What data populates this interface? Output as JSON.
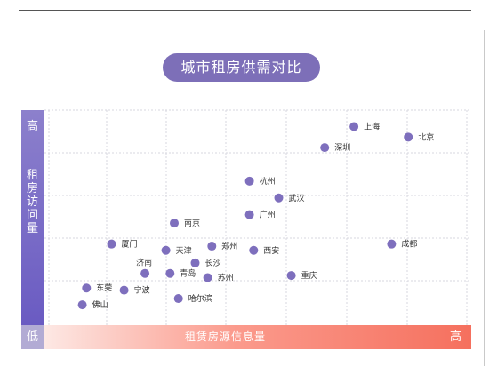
{
  "header": {
    "title": "城市租房供需对比"
  },
  "chart_data": {
    "type": "scatter",
    "title": "城市租房供需对比",
    "xlabel": "租赁房源信息量",
    "ylabel": "租房访问量",
    "x_low_label": "低",
    "x_high_label": "高",
    "y_high_label": "高",
    "xlim": [
      0,
      10
    ],
    "ylim": [
      0,
      10
    ],
    "grid": true,
    "point_color": "#7e6fbd",
    "points": [
      {
        "name": "上海",
        "x": 7.3,
        "y": 9.3
      },
      {
        "name": "北京",
        "x": 8.6,
        "y": 8.8
      },
      {
        "name": "深圳",
        "x": 6.6,
        "y": 8.3
      },
      {
        "name": "杭州",
        "x": 4.8,
        "y": 6.7
      },
      {
        "name": "武汉",
        "x": 5.5,
        "y": 5.9
      },
      {
        "name": "广州",
        "x": 4.8,
        "y": 5.1
      },
      {
        "name": "南京",
        "x": 3.0,
        "y": 4.7
      },
      {
        "name": "成都",
        "x": 8.2,
        "y": 3.7
      },
      {
        "name": "厦门",
        "x": 1.5,
        "y": 3.7
      },
      {
        "name": "天津",
        "x": 2.8,
        "y": 3.4
      },
      {
        "name": "郑州",
        "x": 3.9,
        "y": 3.6
      },
      {
        "name": "西安",
        "x": 4.9,
        "y": 3.4
      },
      {
        "name": "济南",
        "x": 2.3,
        "y": 2.3
      },
      {
        "name": "长沙",
        "x": 3.5,
        "y": 2.8
      },
      {
        "name": "青岛",
        "x": 2.9,
        "y": 2.3
      },
      {
        "name": "苏州",
        "x": 3.8,
        "y": 2.1
      },
      {
        "name": "重庆",
        "x": 5.8,
        "y": 2.2
      },
      {
        "name": "东莞",
        "x": 0.9,
        "y": 1.6
      },
      {
        "name": "宁波",
        "x": 1.8,
        "y": 1.5
      },
      {
        "name": "哈尔滨",
        "x": 3.1,
        "y": 1.1
      },
      {
        "name": "佛山",
        "x": 0.8,
        "y": 0.8
      }
    ]
  }
}
